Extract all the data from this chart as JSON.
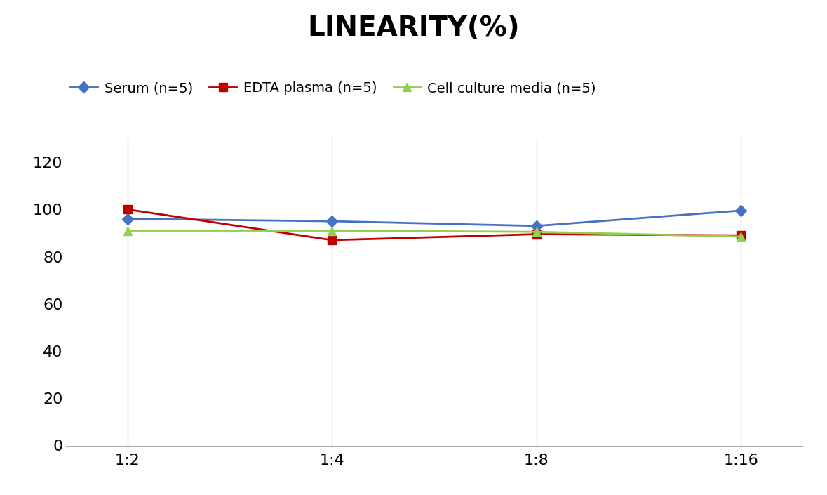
{
  "title": "LINEARITY(%)",
  "title_fontsize": 28,
  "title_fontweight": "bold",
  "x_labels": [
    "1:2",
    "1:4",
    "1:8",
    "1:16"
  ],
  "x_positions": [
    0,
    1,
    2,
    3
  ],
  "series": [
    {
      "label": "Serum (n=5)",
      "color": "#4472C4",
      "marker": "D",
      "marker_size": 8,
      "values": [
        96,
        95,
        93,
        99.5
      ]
    },
    {
      "label": "EDTA plasma (n=5)",
      "color": "#C00000",
      "marker": "s",
      "marker_size": 8,
      "values": [
        100,
        87,
        89.5,
        89
      ]
    },
    {
      "label": "Cell culture media (n=5)",
      "color": "#92D050",
      "marker": "^",
      "marker_size": 8,
      "values": [
        91,
        91,
        90.5,
        88.5
      ]
    }
  ],
  "ylim": [
    0,
    130
  ],
  "yticks": [
    0,
    20,
    40,
    60,
    80,
    100,
    120
  ],
  "grid_color": "#D3D3D3",
  "background_color": "#FFFFFF",
  "legend_fontsize": 14,
  "tick_fontsize": 16,
  "line_width": 2.0
}
